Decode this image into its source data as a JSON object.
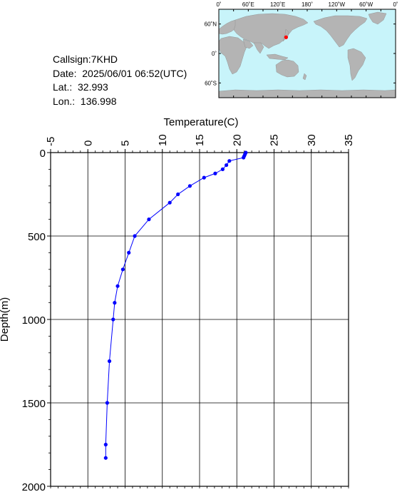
{
  "station": {
    "callsign": "Callsign:7KHD",
    "date": "Date:  2025/06/01 06:52(UTC)",
    "lat": "Lat.:  32.993",
    "lon": "Lon.:  136.998"
  },
  "map": {
    "lon_labels": [
      "0˚",
      "60˚E",
      "120˚E",
      "180˚",
      "120˚W",
      "60˚W",
      "0˚"
    ],
    "lat_labels": [
      "60˚N",
      "0˚",
      "60˚S"
    ],
    "ocean_color": "#c8f4fa",
    "land_color": "#b4b4b4",
    "marker_color": "#ff0000",
    "marker": {
      "lat": 32.993,
      "lon": 136.998
    }
  },
  "chart_data": {
    "type": "line",
    "xlabel": "Temperature(C)",
    "ylabel": "Depth(m)",
    "xlim": [
      -5,
      35
    ],
    "ylim": [
      0,
      2000
    ],
    "x_ticks": [
      -5,
      0,
      5,
      10,
      15,
      20,
      25,
      30,
      35
    ],
    "y_ticks": [
      0,
      500,
      1000,
      1500,
      2000
    ],
    "grid": true,
    "series_color": "#0000ff",
    "points": [
      {
        "t": 21.2,
        "d": 0
      },
      {
        "t": 21.1,
        "d": 10
      },
      {
        "t": 21.0,
        "d": 20
      },
      {
        "t": 20.9,
        "d": 30
      },
      {
        "t": 19.0,
        "d": 50
      },
      {
        "t": 18.6,
        "d": 75
      },
      {
        "t": 18.1,
        "d": 100
      },
      {
        "t": 17.1,
        "d": 125
      },
      {
        "t": 15.6,
        "d": 150
      },
      {
        "t": 13.7,
        "d": 200
      },
      {
        "t": 12.1,
        "d": 250
      },
      {
        "t": 11.0,
        "d": 300
      },
      {
        "t": 8.2,
        "d": 400
      },
      {
        "t": 6.3,
        "d": 500
      },
      {
        "t": 5.5,
        "d": 600
      },
      {
        "t": 4.7,
        "d": 700
      },
      {
        "t": 4.0,
        "d": 800
      },
      {
        "t": 3.6,
        "d": 900
      },
      {
        "t": 3.4,
        "d": 1000
      },
      {
        "t": 2.9,
        "d": 1250
      },
      {
        "t": 2.6,
        "d": 1500
      },
      {
        "t": 2.4,
        "d": 1750
      },
      {
        "t": 2.4,
        "d": 1830
      }
    ]
  }
}
